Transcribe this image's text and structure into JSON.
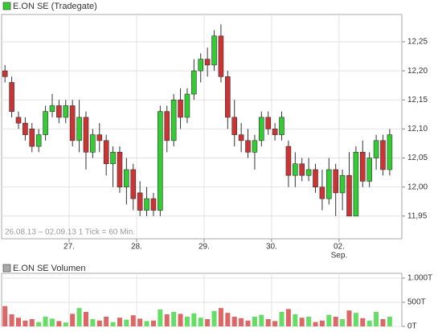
{
  "chart_data": [
    {
      "type": "candlestick",
      "series": [
        {
          "name": "E.ON SE (Tradegate)",
          "color": "#33cc33",
          "open": [
            12.2,
            12.18,
            12.12,
            12.11,
            12.1,
            12.07,
            12.09,
            12.13,
            12.14,
            12.12,
            12.14,
            12.08,
            12.12,
            12.06,
            12.09,
            12.08,
            12.04,
            12.06,
            12.0,
            12.03,
            11.99,
            11.96,
            11.98,
            11.96,
            12.13,
            12.08,
            12.15,
            12.12,
            12.16,
            12.2,
            12.22,
            12.21,
            12.26,
            12.19,
            12.12,
            12.09,
            12.08,
            12.06,
            12.08,
            12.12,
            12.1,
            12.09,
            12.07,
            12.02,
            12.04,
            12.02,
            12.03,
            12.0,
            11.98,
            12.03,
            11.99,
            12.02,
            11.95,
            12.06,
            12.01,
            12.05,
            12.08,
            12.03
          ],
          "high": [
            12.21,
            12.19,
            12.13,
            12.12,
            12.11,
            12.1,
            12.14,
            12.16,
            12.15,
            12.15,
            12.15,
            12.15,
            12.13,
            12.1,
            12.11,
            12.09,
            12.07,
            12.07,
            12.05,
            12.04,
            12.01,
            12.0,
            11.99,
            12.14,
            12.14,
            12.16,
            12.17,
            12.17,
            12.22,
            12.23,
            12.24,
            12.27,
            12.28,
            12.2,
            12.15,
            12.11,
            12.1,
            12.09,
            12.13,
            12.13,
            12.11,
            12.13,
            12.08,
            12.06,
            12.05,
            12.05,
            12.04,
            12.03,
            12.05,
            12.04,
            12.03,
            12.06,
            12.07,
            12.08,
            12.06,
            12.09,
            12.09,
            12.1
          ],
          "low": [
            12.18,
            12.12,
            12.1,
            12.08,
            12.06,
            12.06,
            12.08,
            12.12,
            12.11,
            12.11,
            12.07,
            12.06,
            12.03,
            12.05,
            12.06,
            12.02,
            12.0,
            11.99,
            11.97,
            11.96,
            11.95,
            11.95,
            11.95,
            11.95,
            12.06,
            12.07,
            12.1,
            12.11,
            12.15,
            12.18,
            12.19,
            12.2,
            12.18,
            12.1,
            12.07,
            12.06,
            12.05,
            12.03,
            12.07,
            12.09,
            12.08,
            12.08,
            12.0,
            12.0,
            12.01,
            12.01,
            11.99,
            11.96,
            11.97,
            11.95,
            11.96,
            11.95,
            11.95,
            12.0,
            12.0,
            12.03,
            12.02,
            12.02
          ],
          "close": [
            12.19,
            12.13,
            12.11,
            12.09,
            12.07,
            12.09,
            12.13,
            12.14,
            12.12,
            12.14,
            12.08,
            12.12,
            12.06,
            12.09,
            12.08,
            12.04,
            12.06,
            12.0,
            12.03,
            11.98,
            11.96,
            11.98,
            11.96,
            12.13,
            12.08,
            12.15,
            12.12,
            12.16,
            12.2,
            12.22,
            12.21,
            12.26,
            12.19,
            12.12,
            12.09,
            12.08,
            12.06,
            12.08,
            12.12,
            12.1,
            12.09,
            12.12,
            12.02,
            12.04,
            12.02,
            12.03,
            12.0,
            11.98,
            12.03,
            11.99,
            12.02,
            11.95,
            12.06,
            12.01,
            12.05,
            12.08,
            12.03,
            12.09
          ]
        }
      ],
      "up_color": "#33cc33",
      "down_color": "#cc3333",
      "xlim": [
        -0.5,
        58.8
      ],
      "xticks": [
        {
          "value": 9.5,
          "label": "27."
        },
        {
          "value": 19.5,
          "label": "28."
        },
        {
          "value": 29.5,
          "label": "29."
        },
        {
          "value": 39.5,
          "label": "30."
        },
        {
          "value": 49.5,
          "label": "02.",
          "sublabel": "Sep."
        }
      ],
      "ylim": [
        11.911,
        12.297
      ],
      "yticks": [
        {
          "value": 11.95,
          "label": "11,95"
        },
        {
          "value": 12.0,
          "label": "12,00"
        },
        {
          "value": 12.05,
          "label": "12,05"
        },
        {
          "value": 12.1,
          "label": "12,10"
        },
        {
          "value": 12.15,
          "label": "12,15"
        },
        {
          "value": 12.2,
          "label": "12,20"
        },
        {
          "value": 12.25,
          "label": "12,25"
        }
      ],
      "annotation": "26.08.13 – 02.09.13   1 Tick = 60 Min.",
      "grid": true
    },
    {
      "type": "bar",
      "series": [
        {
          "name": "E.ON SE Volumen",
          "color": "#aaaaaa",
          "values": [
            420,
            250,
            180,
            120,
            150,
            90,
            200,
            160,
            110,
            80,
            260,
            380,
            300,
            150,
            120,
            200,
            90,
            180,
            140,
            230,
            160,
            110,
            120,
            350,
            250,
            300,
            260,
            200,
            270,
            180,
            150,
            320,
            380,
            280,
            200,
            170,
            120,
            200,
            240,
            150,
            110,
            300,
            360,
            250,
            180,
            200,
            90,
            120,
            240,
            200,
            150,
            330,
            280,
            170,
            120,
            300,
            150,
            200
          ]
        }
      ],
      "up_color": "#66dd66",
      "down_color": "#dd6666",
      "xlim": [
        -0.5,
        58.8
      ],
      "ylim": [
        0,
        1100
      ],
      "yticks": [
        {
          "value": 0,
          "label": "0T"
        },
        {
          "value": 500,
          "label": "500T"
        },
        {
          "value": 1000,
          "label": "1.000T"
        }
      ],
      "grid": true
    }
  ]
}
